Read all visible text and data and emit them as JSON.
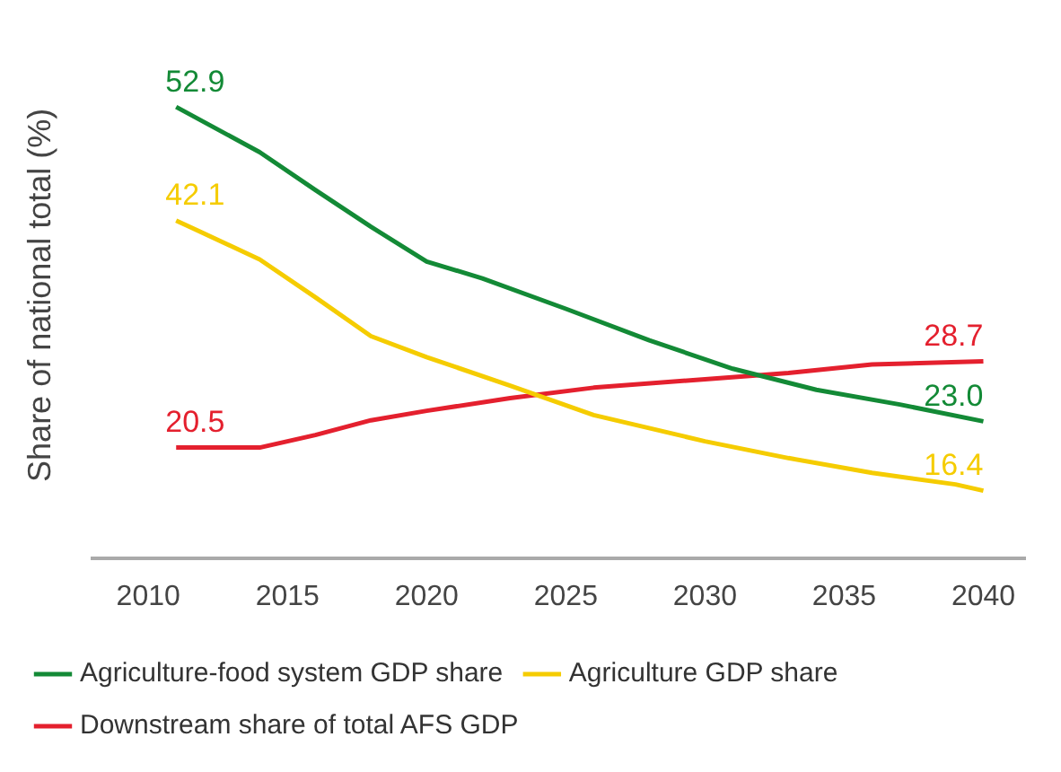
{
  "chart_data": {
    "type": "line",
    "ylabel": "Share of national total (%)",
    "xlim": [
      2008,
      2041.5
    ],
    "xticks": [
      2010,
      2015,
      2020,
      2025,
      2030,
      2035,
      2040
    ],
    "tick_labels": "x",
    "grid": false,
    "legend": "bottom",
    "marker": "none",
    "line_style": "solid",
    "series": [
      {
        "name": "Agriculture-food system GDP share",
        "color": "#138a36",
        "x": [
          2011,
          2014,
          2016,
          2018,
          2020,
          2022,
          2025,
          2028,
          2031,
          2034,
          2037,
          2040
        ],
        "values": [
          52.9,
          48.6,
          45,
          41.5,
          38.2,
          36.6,
          33.7,
          30.7,
          28,
          26,
          24.6,
          23.0
        ],
        "value_labels": [
          "52.9",
          null,
          null,
          null,
          null,
          null,
          null,
          null,
          null,
          null,
          null,
          "23.0"
        ]
      },
      {
        "name": "Agriculture GDP share",
        "color": "#f5cc00",
        "x": [
          2011,
          2014,
          2016,
          2018,
          2020,
          2023,
          2026,
          2030,
          2033,
          2036,
          2039,
          2040
        ],
        "values": [
          42.1,
          38.4,
          34.8,
          31.1,
          29.1,
          26.4,
          23.6,
          21.1,
          19.5,
          18.1,
          17,
          16.4
        ],
        "value_labels": [
          "42.1",
          null,
          null,
          null,
          null,
          null,
          null,
          null,
          null,
          null,
          null,
          "16.4"
        ]
      },
      {
        "name": "Downstream share of total AFS GDP",
        "color": "#e4202e",
        "x": [
          2011,
          2014,
          2016,
          2018,
          2020,
          2023,
          2026,
          2030,
          2033,
          2036,
          2040
        ],
        "values": [
          20.5,
          20.5,
          21.7,
          23.1,
          24,
          25.2,
          26.2,
          27,
          27.6,
          28.4,
          28.7
        ],
        "value_labels": [
          "20.5",
          null,
          null,
          null,
          null,
          null,
          null,
          null,
          null,
          null,
          "28.7"
        ]
      }
    ]
  }
}
